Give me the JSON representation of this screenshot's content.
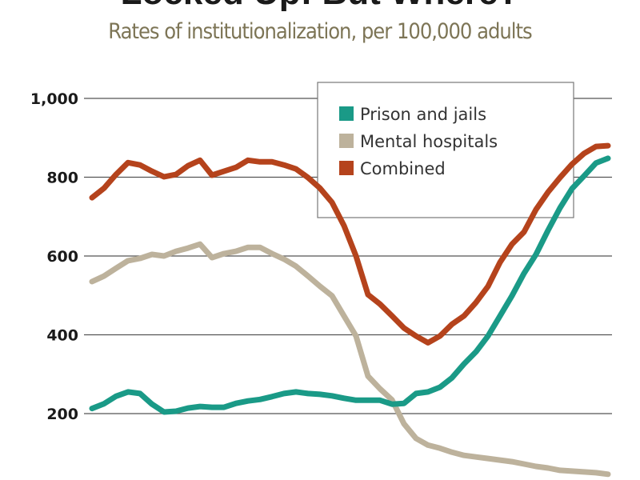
{
  "chart_data": {
    "type": "line",
    "title": "Locked Up: But Where?",
    "subtitle": "Rates of institutionalization, per 100,000 adults",
    "xlabel": "",
    "ylabel": "",
    "ylim": [
      0,
      1000
    ],
    "yticks": [
      200,
      400,
      600,
      800,
      1000
    ],
    "ytick_labels": [
      "200",
      "400",
      "600",
      "800",
      "1,000"
    ],
    "grid": "horizontal",
    "legend_position": "top-right",
    "series": [
      {
        "name": "Prison and jails",
        "color": "#1a9a87",
        "values": [
          213,
          225,
          244,
          255,
          251,
          224,
          204,
          206,
          214,
          218,
          216,
          216,
          226,
          232,
          236,
          243,
          251,
          255,
          251,
          249,
          245,
          239,
          234,
          234,
          234,
          224,
          226,
          251,
          255,
          267,
          291,
          326,
          357,
          397,
          448,
          499,
          556,
          604,
          665,
          722,
          771,
          803,
          836,
          848
        ]
      },
      {
        "name": "Mental hospitals",
        "color": "#bdb29c",
        "values": [
          535,
          549,
          569,
          588,
          594,
          604,
          600,
          612,
          620,
          630,
          596,
          606,
          612,
          622,
          622,
          606,
          592,
          574,
          549,
          523,
          499,
          448,
          397,
          295,
          263,
          235,
          174,
          137,
          120,
          112,
          102,
          94,
          90,
          86,
          82,
          78,
          72,
          66,
          62,
          56,
          54,
          52,
          50,
          46
        ]
      },
      {
        "name": "Combined",
        "color": "#b5431c",
        "values": [
          748,
          772,
          807,
          837,
          831,
          815,
          801,
          807,
          829,
          843,
          805,
          815,
          825,
          843,
          839,
          839,
          831,
          821,
          799,
          772,
          736,
          677,
          600,
          502,
          478,
          448,
          417,
          397,
          380,
          397,
          427,
          448,
          482,
          523,
          584,
          630,
          661,
          718,
          762,
          799,
          833,
          860,
          878,
          880
        ]
      }
    ]
  }
}
